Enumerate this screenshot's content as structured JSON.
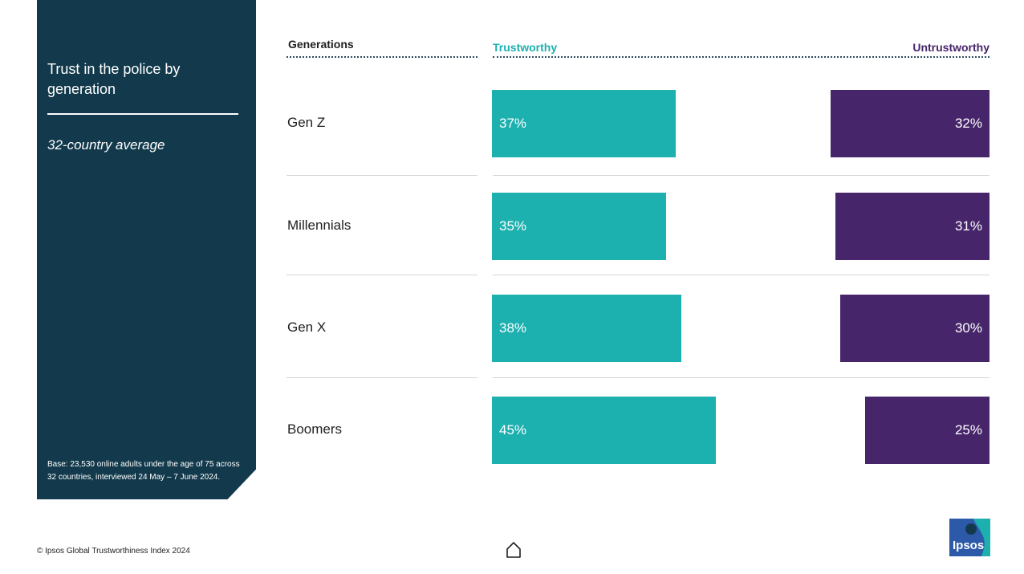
{
  "panel": {
    "title": "Trust in the police by generation",
    "subtitle": "32-country average",
    "base_note": "Base: 23,530 online adults under the age of 75 across 32 countries, interviewed 24 May – 7 June 2024."
  },
  "footer": {
    "copyright": "© Ipsos Global Trustworthiness Index 2024",
    "logo_text": "Ipsos"
  },
  "icons": {
    "home": "home-icon",
    "logo": "ipsos-logo"
  },
  "colors": {
    "trustworthy": "#1cb0af",
    "untrustworthy": "#46256a",
    "panel": "#133a4c"
  },
  "chart_data": {
    "type": "bar",
    "headers": {
      "category": "Generations",
      "left": "Trustworthy",
      "right": "Untrustworthy"
    },
    "categories": [
      "Gen Z",
      "Millennials",
      "Gen X",
      "Boomers"
    ],
    "series": [
      {
        "name": "Trustworthy",
        "values": [
          37,
          35,
          38,
          45
        ],
        "labels": [
          "37%",
          "35%",
          "38%",
          "45%"
        ]
      },
      {
        "name": "Untrustworthy",
        "values": [
          32,
          31,
          30,
          25
        ],
        "labels": [
          "32%",
          "31%",
          "30%",
          "25%"
        ]
      }
    ]
  }
}
